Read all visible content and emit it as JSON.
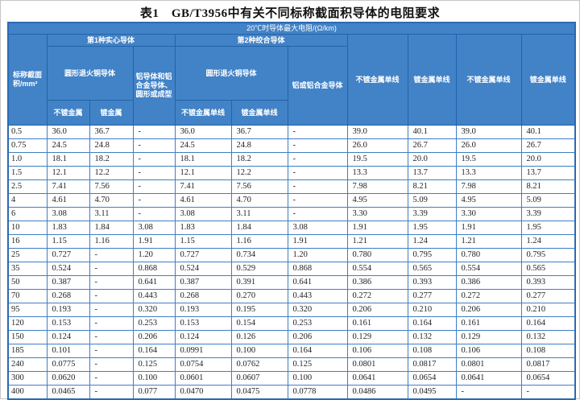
{
  "title": "表1　GB/T3956中有关不同标称截面积导体的电阻要求",
  "colors": {
    "header_bg": "#4282c6",
    "header_line": "#2263a9",
    "grid_line": "#3f7ec3",
    "outer_border": "#2b6ab2",
    "header_text": "#ffffff",
    "body_text": "#222222"
  },
  "table": {
    "header": {
      "top": "20℃时导体最大电阻/(Ω/km)",
      "nominal_area": "标称截面积/mm²",
      "class1_solid": "第1种实心导体",
      "class2_stranded": "第2种绞合导体",
      "round_copper": "圆形退火铜导体",
      "aluminum_solid": "铝导体和铝合金导体、圆形或成型",
      "aluminum_stranded": "铝或铝合金导体",
      "unplated": "不镀金属",
      "plated": "镀金属",
      "unplated_wire": "不镀金属单线",
      "plated_wire": "镀金属单线"
    },
    "rows": [
      [
        "0.5",
        "36.0",
        "36.7",
        "-",
        "36.0",
        "36.7",
        "-",
        "39.0",
        "40.1",
        "39.0",
        "40.1"
      ],
      [
        "0.75",
        "24.5",
        "24.8",
        "-",
        "24.5",
        "24.8",
        "-",
        "26.0",
        "26.7",
        "26.0",
        "26.7"
      ],
      [
        "1.0",
        "18.1",
        "18.2",
        "-",
        "18.1",
        "18.2",
        "-",
        "19.5",
        "20.0",
        "19.5",
        "20.0"
      ],
      [
        "1.5",
        "12.1",
        "12.2",
        "-",
        "12.1",
        "12.2",
        "-",
        "13.3",
        "13.7",
        "13.3",
        "13.7"
      ],
      [
        "2.5",
        "7.41",
        "7.56",
        "-",
        "7.41",
        "7.56",
        "-",
        "7.98",
        "8.21",
        "7.98",
        "8.21"
      ],
      [
        "4",
        "4.61",
        "4.70",
        "-",
        "4.61",
        "4.70",
        "-",
        "4.95",
        "5.09",
        "4.95",
        "5.09"
      ],
      [
        "6",
        "3.08",
        "3.11",
        "-",
        "3.08",
        "3.11",
        "-",
        "3.30",
        "3.39",
        "3.30",
        "3.39"
      ],
      [
        "10",
        "1.83",
        "1.84",
        "3.08",
        "1.83",
        "1.84",
        "3.08",
        "1.91",
        "1.95",
        "1.91",
        "1.95"
      ],
      [
        "16",
        "1.15",
        "1.16",
        "1.91",
        "1.15",
        "1.16",
        "1.91",
        "1.21",
        "1.24",
        "1.21",
        "1.24"
      ],
      [
        "25",
        "0.727",
        "-",
        "1.20",
        "0.727",
        "0.734",
        "1.20",
        "0.780",
        "0.795",
        "0.780",
        "0.795"
      ],
      [
        "35",
        "0.524",
        "-",
        "0.868",
        "0.524",
        "0.529",
        "0.868",
        "0.554",
        "0.565",
        "0.554",
        "0.565"
      ],
      [
        "50",
        "0.387",
        "-",
        "0.641",
        "0.387",
        "0.391",
        "0.641",
        "0.386",
        "0.393",
        "0.386",
        "0.393"
      ],
      [
        "70",
        "0.268",
        "-",
        "0.443",
        "0.268",
        "0.270",
        "0.443",
        "0.272",
        "0.277",
        "0.272",
        "0.277"
      ],
      [
        "95",
        "0.193",
        "-",
        "0.320",
        "0.193",
        "0.195",
        "0.320",
        "0.206",
        "0.210",
        "0.206",
        "0.210"
      ],
      [
        "120",
        "0.153",
        "-",
        "0.253",
        "0.153",
        "0.154",
        "0.253",
        "0.161",
        "0.164",
        "0.161",
        "0.164"
      ],
      [
        "150",
        "0.124",
        "-",
        "0.206",
        "0.124",
        "0.126",
        "0.206",
        "0.129",
        "0.132",
        "0.129",
        "0.132"
      ],
      [
        "185",
        "0.101",
        "-",
        "0.164",
        "0.0991",
        "0.100",
        "0.164",
        "0.106",
        "0.108",
        "0.106",
        "0.108"
      ],
      [
        "240",
        "0.0775",
        "-",
        "0.125",
        "0.0754",
        "0.0762",
        "0.125",
        "0.0801",
        "0.0817",
        "0.0801",
        "0.0817"
      ],
      [
        "300",
        "0.0620",
        "-",
        "0.100",
        "0.0601",
        "0.0607",
        "0.100",
        "0.0641",
        "0.0654",
        "0.0641",
        "0.0654"
      ],
      [
        "400",
        "0.0465",
        "-",
        "0.077",
        "0.0470",
        "0.0475",
        "0.0778",
        "0.0486",
        "0.0495",
        "-",
        "-"
      ]
    ]
  }
}
